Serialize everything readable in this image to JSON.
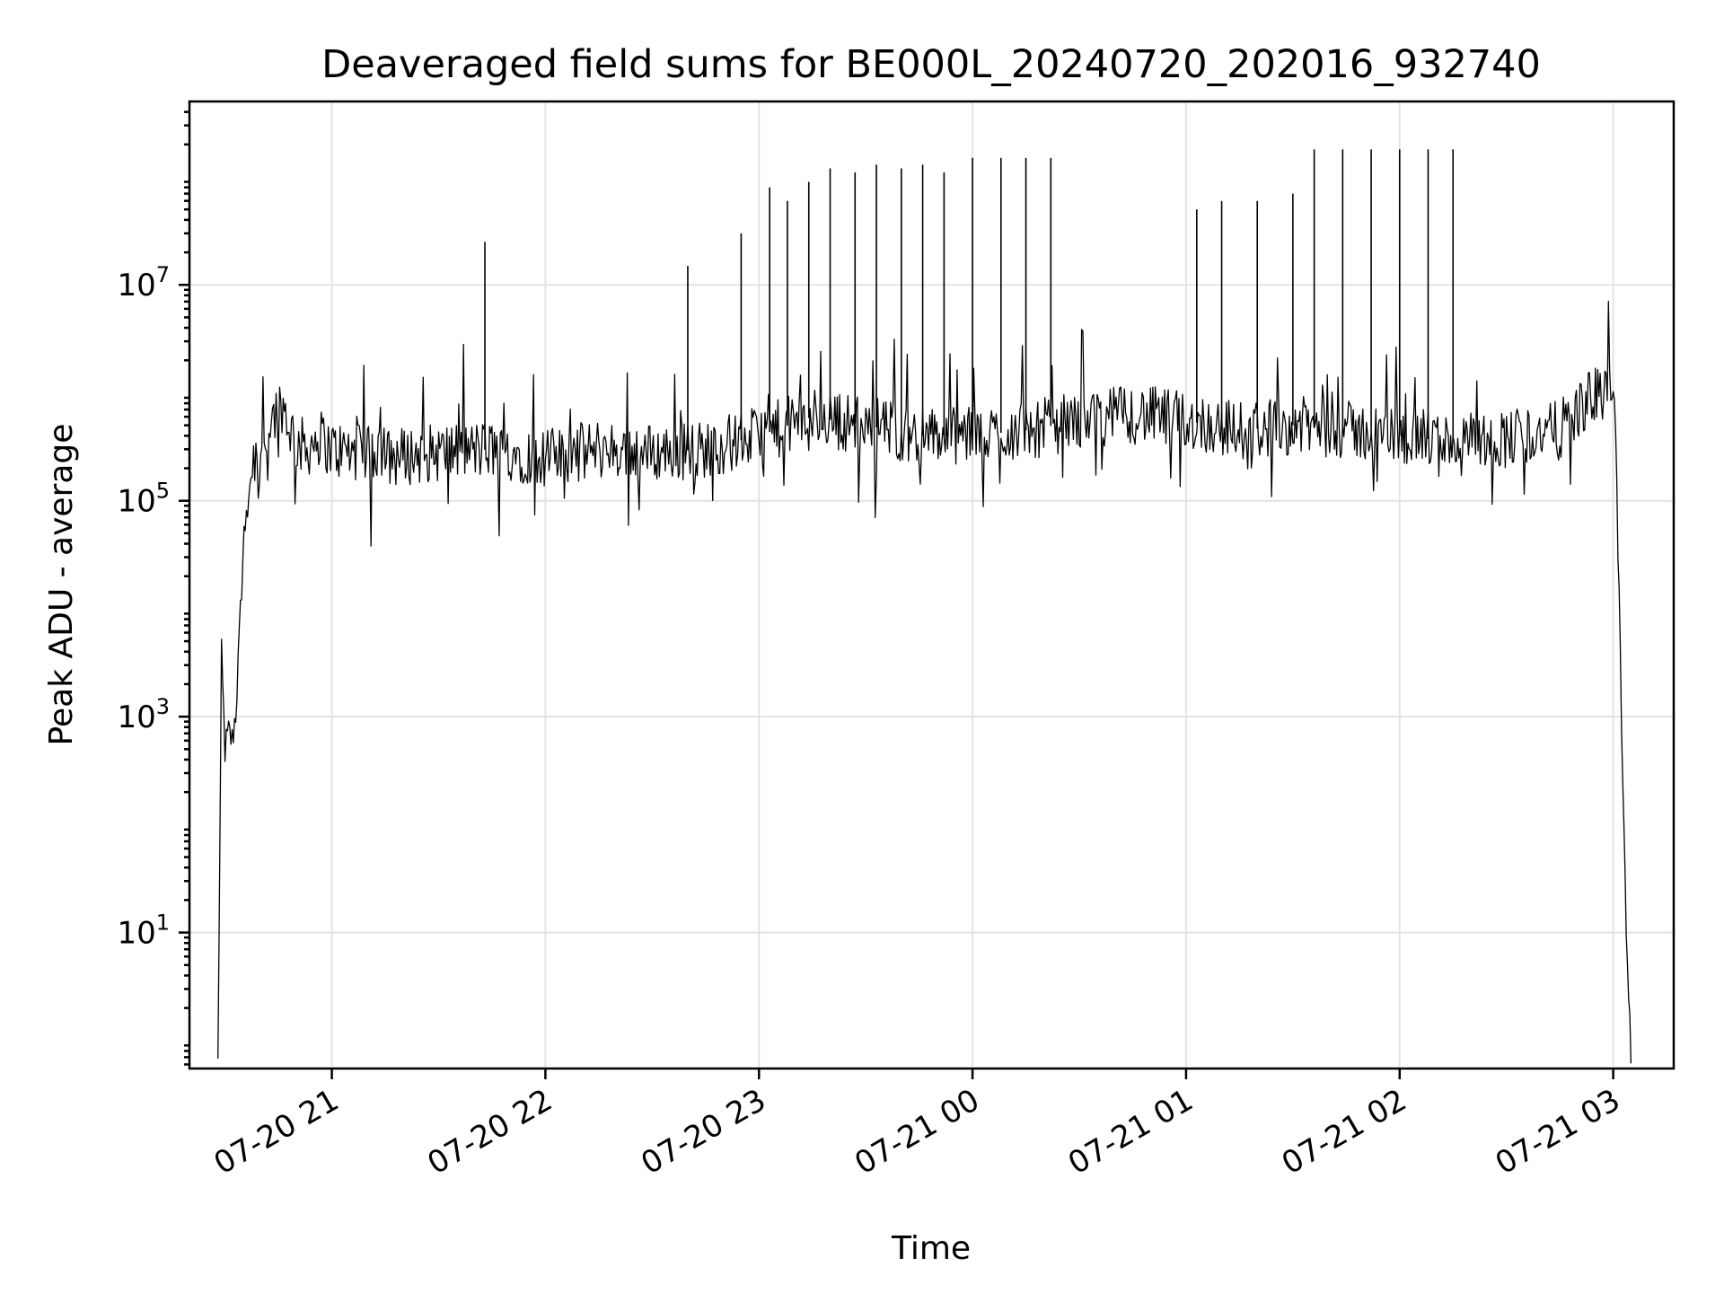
{
  "chart_data": {
    "type": "line",
    "title": "Deaveraged field sums for BE000L_20240720_202016_932740",
    "xlabel": "Time",
    "ylabel": "Peak ADU - average",
    "yscale": "log",
    "ylim": [
      0.55,
      500000000
    ],
    "xlim": [
      "2024-07-20T20:20:00",
      "2024-07-21T03:17:00"
    ],
    "grid": true,
    "xticks": [
      "2024-07-20T21:00",
      "2024-07-20T22:00",
      "2024-07-20T23:00",
      "2024-07-21T00:00",
      "2024-07-21T01:00",
      "2024-07-21T02:00",
      "2024-07-21T03:00"
    ],
    "xtick_labels": [
      "07-20 21",
      "07-20 22",
      "07-20 23",
      "07-21 00",
      "07-21 01",
      "07-21 02",
      "07-21 03"
    ],
    "yticks": [
      10,
      1000,
      100000,
      10000000
    ],
    "ytick_labels": [
      {
        "base": "10",
        "exp": "1"
      },
      {
        "base": "10",
        "exp": "3"
      },
      {
        "base": "10",
        "exp": "5"
      },
      {
        "base": "10",
        "exp": "7"
      }
    ],
    "series": [
      {
        "color": "#000000",
        "x": [
          "2024-07-20T20:28",
          "2024-07-20T20:29",
          "2024-07-20T20:30",
          "2024-07-20T20:31",
          "2024-07-20T20:32",
          "2024-07-20T20:33",
          "2024-07-20T20:34",
          "2024-07-20T20:35",
          "2024-07-20T20:36",
          "2024-07-20T20:37",
          "2024-07-20T20:38",
          "2024-07-20T20:40",
          "2024-07-20T20:42",
          "2024-07-20T20:44",
          "2024-07-20T20:46",
          "2024-07-20T20:48",
          "2024-07-20T20:50",
          "2024-07-20T20:53",
          "2024-07-20T20:56",
          "2024-07-20T21:00",
          "2024-07-20T21:15",
          "2024-07-20T21:30",
          "2024-07-20T21:45",
          "2024-07-20T22:00",
          "2024-07-20T22:15",
          "2024-07-20T22:30",
          "2024-07-20T22:45",
          "2024-07-20T23:00",
          "2024-07-20T23:15",
          "2024-07-20T23:30",
          "2024-07-20T23:45",
          "2024-07-21T00:00",
          "2024-07-21T00:15",
          "2024-07-21T00:30",
          "2024-07-21T00:45",
          "2024-07-21T01:00",
          "2024-07-21T01:15",
          "2024-07-21T01:30",
          "2024-07-21T01:45",
          "2024-07-21T02:00",
          "2024-07-21T02:15",
          "2024-07-21T02:30",
          "2024-07-21T02:45",
          "2024-07-21T02:52",
          "2024-07-21T02:56",
          "2024-07-21T02:58",
          "2024-07-21T03:00",
          "2024-07-21T03:01",
          "2024-07-21T03:02",
          "2024-07-21T03:03",
          "2024-07-21T03:04",
          "2024-07-21T03:05"
        ],
        "y": [
          0.6,
          3500,
          500,
          700,
          600,
          1100,
          5000,
          30000,
          90000,
          150000,
          250000,
          300000,
          450000,
          650000,
          800000,
          500000,
          350000,
          300000,
          400000,
          300000,
          250000,
          280000,
          300000,
          250000,
          300000,
          280000,
          300000,
          400000,
          600000,
          500000,
          400000,
          400000,
          450000,
          550000,
          650000,
          550000,
          450000,
          500000,
          450000,
          400000,
          350000,
          380000,
          450000,
          800000,
          1000000,
          1000000,
          800000,
          200000,
          3000,
          100,
          5,
          0.6
        ],
        "spikes": [
          {
            "x": "2024-07-20T21:43",
            "y": 25000000
          },
          {
            "x": "2024-07-20T22:40",
            "y": 15000000
          },
          {
            "x": "2024-07-20T22:55",
            "y": 30000000
          },
          {
            "x": "2024-07-20T23:03",
            "y": 80000000
          },
          {
            "x": "2024-07-20T23:08",
            "y": 60000000
          },
          {
            "x": "2024-07-20T23:14",
            "y": 90000000
          },
          {
            "x": "2024-07-20T23:20",
            "y": 120000000
          },
          {
            "x": "2024-07-20T23:27",
            "y": 110000000
          },
          {
            "x": "2024-07-20T23:33",
            "y": 130000000
          },
          {
            "x": "2024-07-20T23:40",
            "y": 120000000
          },
          {
            "x": "2024-07-20T23:46",
            "y": 130000000
          },
          {
            "x": "2024-07-20T23:52",
            "y": 110000000
          },
          {
            "x": "2024-07-21T00:00",
            "y": 150000000
          },
          {
            "x": "2024-07-21T00:08",
            "y": 150000000
          },
          {
            "x": "2024-07-21T00:15",
            "y": 150000000
          },
          {
            "x": "2024-07-21T00:22",
            "y": 150000000
          },
          {
            "x": "2024-07-21T01:03",
            "y": 50000000
          },
          {
            "x": "2024-07-21T01:10",
            "y": 60000000
          },
          {
            "x": "2024-07-21T01:20",
            "y": 60000000
          },
          {
            "x": "2024-07-21T01:30",
            "y": 70000000
          },
          {
            "x": "2024-07-21T01:36",
            "y": 180000000
          },
          {
            "x": "2024-07-21T01:44",
            "y": 180000000
          },
          {
            "x": "2024-07-21T01:52",
            "y": 180000000
          },
          {
            "x": "2024-07-21T02:00",
            "y": 180000000
          },
          {
            "x": "2024-07-21T02:08",
            "y": 180000000
          },
          {
            "x": "2024-07-21T02:15",
            "y": 180000000
          }
        ]
      }
    ]
  }
}
